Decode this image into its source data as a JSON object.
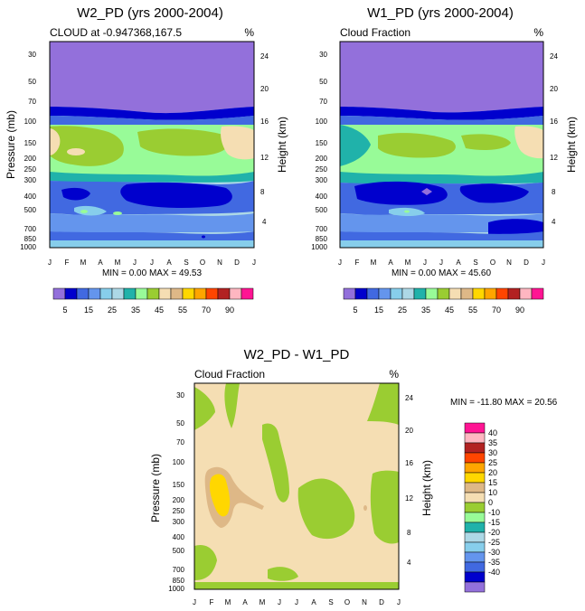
{
  "chart_data": [
    {
      "type": "heatmap",
      "title": "W2_PD (yrs 2000-2004)",
      "subtitle_left": "CLOUD at -0.947368,167.5",
      "units": "%",
      "ylabel": "Pressure (mb)",
      "ylabel_right": "Height (km)",
      "x_ticks": [
        "J",
        "F",
        "M",
        "A",
        "M",
        "J",
        "J",
        "A",
        "S",
        "O",
        "N",
        "D",
        "J"
      ],
      "y_ticks": [
        "30",
        "50",
        "70",
        "100",
        "150",
        "200",
        "250",
        "300",
        "400",
        "500",
        "700",
        "850",
        "1000"
      ],
      "y_right_ticks": [
        "24",
        "20",
        "16",
        "12",
        "8",
        "4"
      ],
      "min_label": "MIN =",
      "min_value": "0.00",
      "max_label": "MAX =",
      "max_value": "49.53",
      "colorbar_labels": [
        "5",
        "15",
        "25",
        "35",
        "45",
        "55",
        "70",
        "90"
      ]
    },
    {
      "type": "heatmap",
      "title": "W1_PD (yrs 2000-2004)",
      "subtitle_left": "Cloud Fraction",
      "units": "%",
      "ylabel_right": "Height (km)",
      "x_ticks": [
        "J",
        "F",
        "M",
        "A",
        "M",
        "J",
        "J",
        "A",
        "S",
        "O",
        "N",
        "D",
        "J"
      ],
      "y_ticks": [
        "30",
        "50",
        "70",
        "100",
        "150",
        "200",
        "250",
        "300",
        "400",
        "500",
        "700",
        "850",
        "1000"
      ],
      "y_right_ticks": [
        "24",
        "20",
        "16",
        "12",
        "8",
        "4"
      ],
      "min_label": "MIN =",
      "min_value": "0.00",
      "max_label": "MAX =",
      "max_value": "45.60",
      "colorbar_labels": [
        "5",
        "15",
        "25",
        "35",
        "45",
        "55",
        "70",
        "90"
      ]
    },
    {
      "type": "heatmap",
      "title": "W2_PD - W1_PD",
      "subtitle_left": "Cloud Fraction",
      "units": "%",
      "ylabel": "Pressure (mb)",
      "ylabel_right": "Height (km)",
      "x_ticks": [
        "J",
        "F",
        "M",
        "A",
        "M",
        "J",
        "J",
        "A",
        "S",
        "O",
        "N",
        "D",
        "J"
      ],
      "y_ticks": [
        "30",
        "50",
        "70",
        "100",
        "150",
        "200",
        "250",
        "300",
        "400",
        "500",
        "700",
        "850",
        "1000"
      ],
      "y_right_ticks": [
        "24",
        "20",
        "16",
        "12",
        "8",
        "4"
      ],
      "min_label": "MIN =",
      "min_value": "-11.80",
      "max_label": "MAX =",
      "max_value": "20.56",
      "colorbar_labels": [
        "40",
        "35",
        "30",
        "25",
        "20",
        "15",
        "10",
        "0",
        "-10",
        "-15",
        "-20",
        "-25",
        "-30",
        "-35",
        "-40"
      ]
    }
  ],
  "colors": {
    "seq": [
      "#9370db",
      "#0000cd",
      "#4169e1",
      "#6495ed",
      "#87ceeb",
      "#add8e6",
      "#20b2aa",
      "#98fb98",
      "#9acd32",
      "#f5deb3",
      "#deb887",
      "#ffd700",
      "#ffa500",
      "#ff4500",
      "#b22222",
      "#ffb6c1",
      "#ff1493"
    ],
    "diff": [
      "#ff1493",
      "#ffb6c1",
      "#b22222",
      "#ff4500",
      "#ffa500",
      "#ffd700",
      "#deb887",
      "#f5deb3",
      "#9acd32",
      "#98fb98",
      "#20b2aa",
      "#add8e6",
      "#87ceeb",
      "#6495ed",
      "#4169e1",
      "#0000cd",
      "#9370db"
    ]
  }
}
